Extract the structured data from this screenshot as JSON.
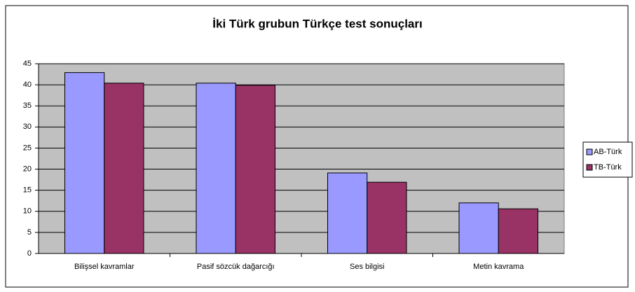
{
  "chart_data": {
    "type": "bar",
    "title": "İki Türk grubun Türkçe test sonuçları",
    "categories": [
      "Bilişsel kavramlar",
      "Pasif sözcük dağarcığı",
      "Ses bilgisi",
      "Metin kavrama"
    ],
    "series": [
      {
        "name": "AB-Türk",
        "color": "#9999ff",
        "values": [
          42.9,
          40.4,
          19.1,
          12.0
        ]
      },
      {
        "name": "TB-Türk",
        "color": "#993366",
        "values": [
          40.4,
          39.9,
          16.9,
          10.6
        ]
      }
    ],
    "ylim": [
      0,
      45
    ],
    "yticks": [
      0,
      5,
      10,
      15,
      20,
      25,
      30,
      35,
      40,
      45
    ],
    "grid": true,
    "legend": "right"
  }
}
